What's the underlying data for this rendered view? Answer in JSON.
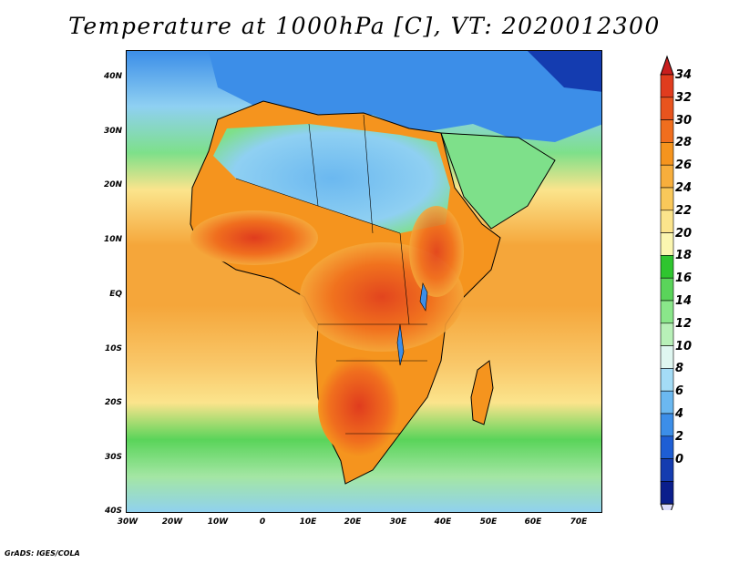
{
  "title": "Temperature at 1000hPa [C], VT: 2020012300",
  "footer": "GrADS: IGES/COLA",
  "y_ticks": [
    "40N",
    "30N",
    "20N",
    "10N",
    "EQ",
    "10S",
    "20S",
    "30S",
    "40S"
  ],
  "x_ticks": [
    "30W",
    "20W",
    "10W",
    "0",
    "10E",
    "20E",
    "30E",
    "40E",
    "50E",
    "60E",
    "70E"
  ],
  "colorbar": {
    "labels": [
      "34",
      "32",
      "30",
      "28",
      "26",
      "24",
      "22",
      "20",
      "18",
      "16",
      "14",
      "12",
      "10",
      "8",
      "6",
      "4",
      "2",
      "0"
    ],
    "colors_top_to_bottom": [
      "#e03c1e",
      "#e8541e",
      "#f06e1e",
      "#f5941e",
      "#f7ae3c",
      "#f9c85a",
      "#fbe48c",
      "#fbf6b0",
      "#2fc52f",
      "#5ad45a",
      "#8ae68a",
      "#b8f0b8",
      "#dff6f0",
      "#a4dcf6",
      "#6bb8f0",
      "#3c8ee8",
      "#1e5ed4",
      "#143cb0",
      "#0a1e8c"
    ],
    "top_arrow_color": "#c81e1e",
    "bottom_arrow_color": "#dcdcfa"
  },
  "map": {
    "ocean_colors": {
      "tropical": "#f5a63a",
      "subtropical": "#f9c86a",
      "midlat": "#5ad45a",
      "south": "#a4e6a4"
    },
    "land_colors": {
      "sahara": "#6bb8f0",
      "sahel": "#f06e1e",
      "hot": "#e03c1e",
      "mediterranean": "#3c8ee8"
    }
  }
}
